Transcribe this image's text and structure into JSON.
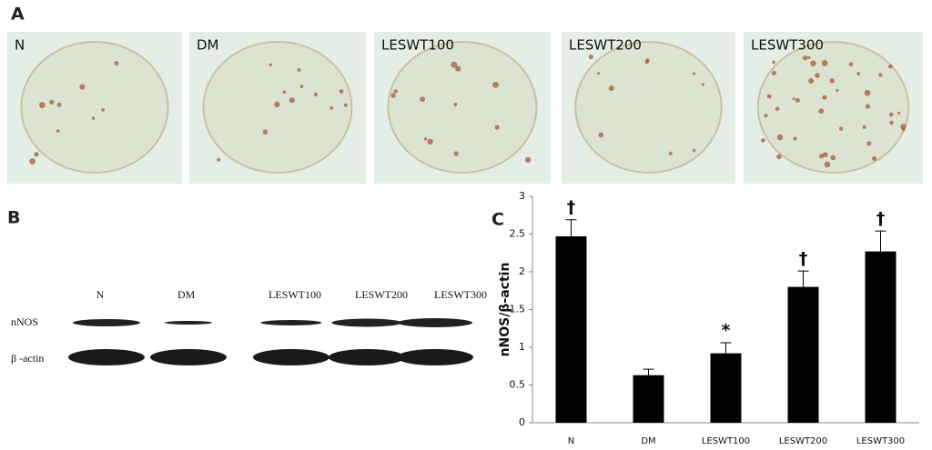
{
  "panels": {
    "a": "A",
    "b": "B",
    "c": "C"
  },
  "micrographs": [
    "N",
    "DM",
    "LESWT100",
    "LESWT200",
    "LESWT300"
  ],
  "blot": {
    "lanes": [
      "N",
      "DM",
      "LESWT100",
      "LESWT200",
      "LESWT300"
    ],
    "rows": [
      "nNOS",
      "β -actin"
    ]
  },
  "chart_data": {
    "type": "bar",
    "ylabel": "nNOS/β-actin",
    "categories": [
      "N",
      "DM",
      "LESWT100",
      "LESWT200",
      "LESWT300"
    ],
    "values": [
      2.47,
      0.63,
      0.92,
      1.8,
      2.27
    ],
    "errors": [
      0.22,
      0.08,
      0.14,
      0.21,
      0.27
    ],
    "annotations": [
      "†",
      null,
      "*",
      "†",
      "†"
    ],
    "color": "#000000",
    "ylim": [
      0,
      3
    ],
    "yticks": [
      0,
      0.5,
      1,
      1.5,
      2,
      2.5,
      3
    ]
  }
}
